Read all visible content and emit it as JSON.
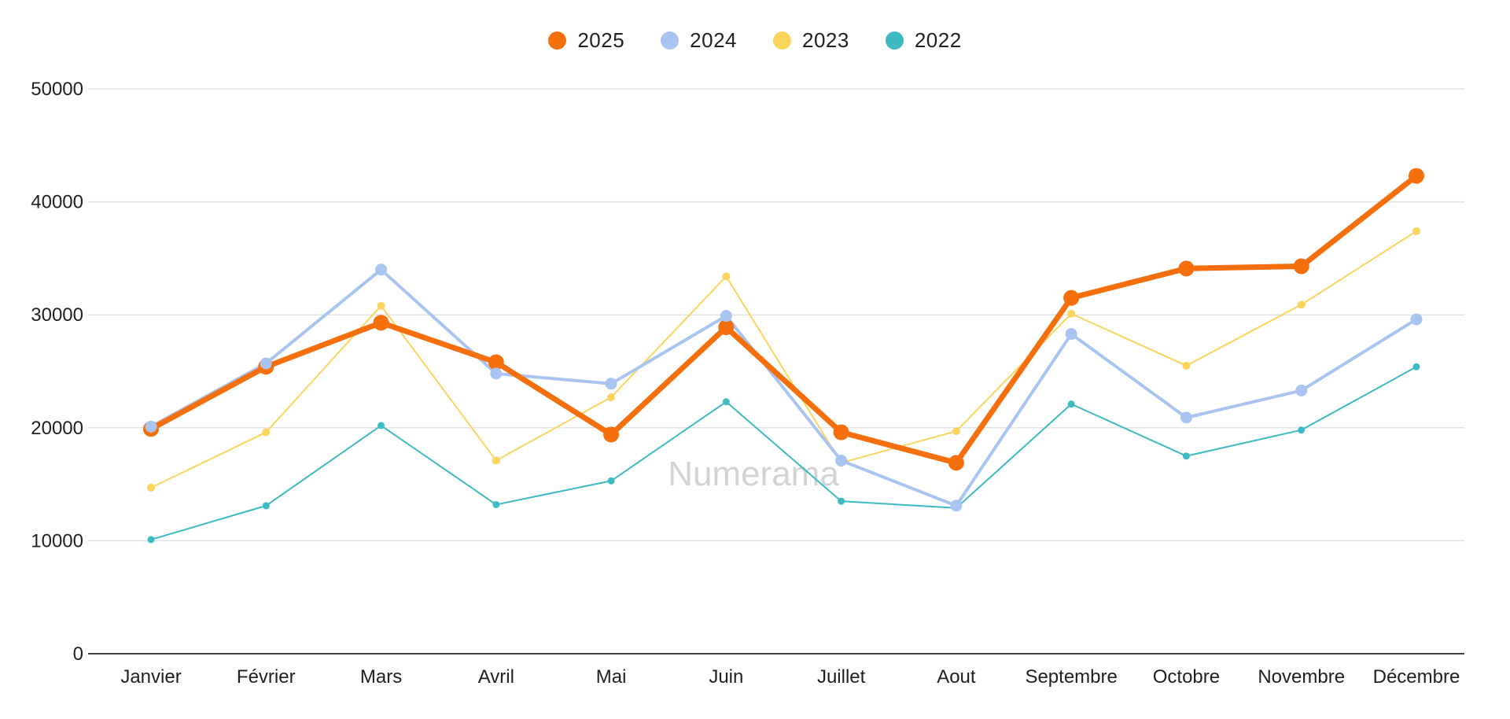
{
  "watermark": "Numerama",
  "legend": {
    "position": "top-center"
  },
  "chart_data": {
    "type": "line",
    "title": "",
    "xlabel": "",
    "ylabel": "",
    "categories": [
      "Janvier",
      "Février",
      "Mars",
      "Avril",
      "Mai",
      "Juin",
      "Juillet",
      "Aout",
      "Septembre",
      "Octobre",
      "Novembre",
      "Décembre"
    ],
    "y_ticks": [
      0,
      10000,
      20000,
      30000,
      40000,
      50000
    ],
    "ylim": [
      0,
      50000
    ],
    "grid": true,
    "background_color": "#ffffff",
    "gridline_color": "#e3e3e3",
    "baseline_color": "#424242",
    "axis_text_color": "#1f1f1f",
    "watermark_color": "#cccccc",
    "series": [
      {
        "name": "2022",
        "color": "#3dbac2",
        "values": [
          10100,
          13100,
          20200,
          13200,
          15300,
          22300,
          13500,
          12900,
          22100,
          17500,
          19800,
          25400
        ],
        "line_width": 2,
        "point_radius": 4.5
      },
      {
        "name": "2023",
        "color": "#fbd45c",
        "values": [
          14700,
          19600,
          30800,
          17100,
          22700,
          33400,
          16900,
          19700,
          30100,
          25500,
          30900,
          37400
        ],
        "line_width": 2,
        "point_radius": 5
      },
      {
        "name": "2024",
        "color": "#a9c4f1",
        "values": [
          20100,
          25700,
          34000,
          24800,
          23900,
          29900,
          17100,
          13100,
          28300,
          20900,
          23300,
          29600
        ],
        "line_width": 4,
        "point_radius": 7.5
      },
      {
        "name": "2025",
        "color": "#f5700d",
        "values": [
          19900,
          25400,
          29300,
          25800,
          19400,
          28900,
          19600,
          16900,
          31500,
          34100,
          34300,
          42300
        ],
        "line_width": 7,
        "point_radius": 10
      }
    ],
    "legend_order": [
      "2025",
      "2024",
      "2023",
      "2022"
    ]
  }
}
